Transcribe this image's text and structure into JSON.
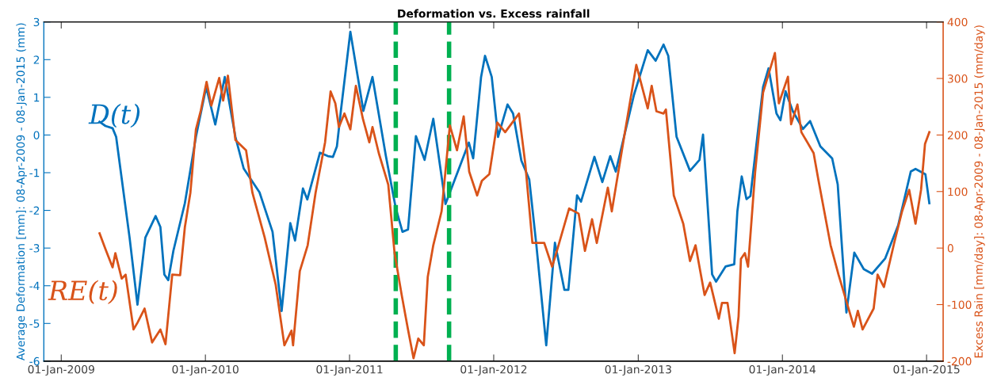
{
  "chart_data": {
    "type": "line",
    "title": "Deformation vs. Excess rainfall",
    "ylabel": "Average Deformation [mm]: 08-Apr-2009 - 08-Jan-2015 (mm)",
    "y2label": "Excess Rain [mm/day]: 08-Apr-2009 - 08-Jan-2015 (mm/day)",
    "xlim": [
      "2008-11-18",
      "2015-02-12"
    ],
    "xticks": [
      {
        "value": "2009-01-01",
        "label": "01-Jan-2009"
      },
      {
        "value": "2010-01-01",
        "label": "01-Jan-2010"
      },
      {
        "value": "2011-01-01",
        "label": "01-Jan-2011"
      },
      {
        "value": "2012-01-01",
        "label": "01-Jan-2012"
      },
      {
        "value": "2013-01-01",
        "label": "01-Jan-2013"
      },
      {
        "value": "2014-01-01",
        "label": "01-Jan-2014"
      },
      {
        "value": "2015-01-01",
        "label": "01-Jan-2015"
      }
    ],
    "ylim": [
      -6,
      3
    ],
    "yticks": [
      -6,
      -5,
      -4,
      -3,
      -2,
      -1,
      0,
      1,
      2,
      3
    ],
    "y2lim": [
      -200,
      400
    ],
    "y2ticks": [
      -200,
      -100,
      0,
      100,
      200,
      300,
      400
    ],
    "grid": false,
    "legend": false,
    "marker": "none",
    "line_style": "solid",
    "series": [
      {
        "name": "D(t)",
        "color": "#0072bd",
        "x": [
          "2009-04-08",
          "2009-04-23",
          "2009-05-11",
          "2009-05-20",
          "2009-06-23",
          "2009-07-13",
          "2009-08-02",
          "2009-08-28",
          "2009-09-09",
          "2009-09-19",
          "2009-09-29",
          "2009-10-12",
          "2009-11-10",
          "2009-12-08",
          "2010-01-03",
          "2010-01-26",
          "2010-02-19",
          "2010-03-18",
          "2010-04-08",
          "2010-05-18",
          "2010-06-20",
          "2010-07-13",
          "2010-08-04",
          "2010-08-16",
          "2010-09-05",
          "2010-09-16",
          "2010-10-18",
          "2010-11-07",
          "2010-11-20",
          "2010-11-30",
          "2010-12-10",
          "2011-01-03",
          "2011-02-05",
          "2011-02-28",
          "2011-04-03",
          "2011-04-28",
          "2011-05-15",
          "2011-05-29",
          "2011-06-18",
          "2011-07-10",
          "2011-08-01",
          "2011-09-01",
          "2011-10-30",
          "2011-11-10",
          "2011-11-30",
          "2011-12-10",
          "2011-12-27",
          "2012-01-12",
          "2012-02-05",
          "2012-02-19",
          "2012-03-11",
          "2012-03-31",
          "2012-04-18",
          "2012-05-13",
          "2012-06-04",
          "2012-06-28",
          "2012-07-08",
          "2012-07-30",
          "2012-08-09",
          "2012-09-12",
          "2012-10-02",
          "2012-10-22",
          "2012-11-05",
          "2012-12-21",
          "2013-01-25",
          "2013-02-14",
          "2013-03-06",
          "2013-03-18",
          "2013-04-08",
          "2013-05-12",
          "2013-06-05",
          "2013-06-14",
          "2013-07-07",
          "2013-07-17",
          "2013-08-10",
          "2013-09-01",
          "2013-09-09",
          "2013-09-20",
          "2013-10-02",
          "2013-10-12",
          "2013-11-13",
          "2013-11-27",
          "2013-12-17",
          "2013-12-27",
          "2014-01-09",
          "2014-01-27",
          "2014-02-22",
          "2014-03-12",
          "2014-04-07",
          "2014-05-07",
          "2014-05-21",
          "2014-06-12",
          "2014-07-02",
          "2014-07-26",
          "2014-08-16",
          "2014-09-18",
          "2014-10-21",
          "2014-11-22",
          "2014-12-04",
          "2014-12-29",
          "2015-01-08"
        ],
        "values": [
          0.35,
          0.24,
          0.18,
          -0.05,
          -2.72,
          -4.5,
          -2.72,
          -2.15,
          -2.44,
          -3.7,
          -3.85,
          -3.07,
          -1.81,
          -0.05,
          1.27,
          0.28,
          1.54,
          -0.05,
          -0.89,
          -1.52,
          -2.57,
          -4.67,
          -2.34,
          -2.8,
          -1.42,
          -1.71,
          -0.47,
          -0.56,
          -0.58,
          -0.3,
          0.64,
          2.74,
          0.64,
          1.54,
          -0.56,
          -1.94,
          -2.57,
          -2.51,
          -0.03,
          -0.66,
          0.43,
          -1.83,
          -0.2,
          -0.62,
          1.54,
          2.1,
          1.54,
          -0.05,
          0.81,
          0.57,
          -0.68,
          -1.18,
          -2.92,
          -5.58,
          -2.86,
          -4.11,
          -4.11,
          -1.6,
          -1.77,
          -0.58,
          -1.25,
          -0.56,
          -0.97,
          1.06,
          2.25,
          1.97,
          2.4,
          2.1,
          -0.05,
          -0.95,
          -0.66,
          0.01,
          -3.7,
          -3.89,
          -3.49,
          -3.43,
          -2.02,
          -1.1,
          -1.7,
          -1.62,
          1.27,
          1.77,
          0.57,
          0.39,
          1.16,
          0.64,
          0.16,
          0.37,
          -0.3,
          -0.62,
          -1.31,
          -4.71,
          -3.12,
          -3.56,
          -3.68,
          -3.28,
          -2.4,
          -0.97,
          -0.9,
          -1.04,
          -1.81
        ]
      },
      {
        "name": "RE(t)",
        "color": "#d95319",
        "axis": "y2",
        "x": [
          "2009-04-08",
          "2009-04-23",
          "2009-05-11",
          "2009-05-18",
          "2009-06-03",
          "2009-06-13",
          "2009-07-03",
          "2009-07-13",
          "2009-07-31",
          "2009-08-19",
          "2009-09-09",
          "2009-09-22",
          "2009-10-09",
          "2009-10-29",
          "2009-11-10",
          "2009-11-24",
          "2009-12-08",
          "2009-12-20",
          "2010-01-04",
          "2010-01-16",
          "2010-02-05",
          "2010-02-15",
          "2010-02-27",
          "2010-03-18",
          "2010-04-14",
          "2010-04-30",
          "2010-05-31",
          "2010-06-28",
          "2010-07-20",
          "2010-08-07",
          "2010-08-11",
          "2010-08-28",
          "2010-09-17",
          "2010-10-07",
          "2010-10-31",
          "2010-11-14",
          "2010-11-26",
          "2010-12-05",
          "2010-12-19",
          "2011-01-03",
          "2011-01-17",
          "2011-02-04",
          "2011-02-20",
          "2011-02-28",
          "2011-03-16",
          "2011-04-09",
          "2011-04-25",
          "2011-05-13",
          "2011-05-29",
          "2011-06-12",
          "2011-06-24",
          "2011-07-08",
          "2011-07-18",
          "2011-08-01",
          "2011-08-22",
          "2011-09-12",
          "2011-09-30",
          "2011-10-17",
          "2011-10-31",
          "2011-11-20",
          "2011-12-02",
          "2011-12-21",
          "2012-01-10",
          "2012-01-30",
          "2012-03-05",
          "2012-03-21",
          "2012-04-08",
          "2012-05-08",
          "2012-05-28",
          "2012-06-09",
          "2012-07-10",
          "2012-08-03",
          "2012-08-19",
          "2012-09-06",
          "2012-09-18",
          "2012-10-16",
          "2012-10-26",
          "2012-11-27",
          "2012-12-27",
          "2013-01-25",
          "2013-02-04",
          "2013-02-16",
          "2013-03-06",
          "2013-03-12",
          "2013-04-01",
          "2013-04-25",
          "2013-05-12",
          "2013-05-26",
          "2013-06-18",
          "2013-07-02",
          "2013-07-24",
          "2013-08-01",
          "2013-08-15",
          "2013-09-02",
          "2013-09-12",
          "2013-09-18",
          "2013-09-28",
          "2013-10-06",
          "2013-10-24",
          "2013-11-13",
          "2013-12-13",
          "2013-12-23",
          "2014-01-15",
          "2014-01-23",
          "2014-02-08",
          "2014-02-18",
          "2014-03-21",
          "2014-04-02",
          "2014-05-03",
          "2014-05-23",
          "2014-07-01",
          "2014-07-11",
          "2014-07-23",
          "2014-08-20",
          "2014-08-30",
          "2014-09-15",
          "2014-10-11",
          "2014-10-31",
          "2014-11-18",
          "2014-12-04",
          "2014-12-18",
          "2014-12-28",
          "2015-01-08"
        ],
        "values": [
          26,
          -2,
          -34,
          -9,
          -54,
          -47,
          -144,
          -132,
          -107,
          -167,
          -144,
          -170,
          -47,
          -48,
          37,
          98,
          210,
          242,
          294,
          252,
          301,
          261,
          305,
          191,
          173,
          98,
          19,
          -65,
          -172,
          -146,
          -172,
          -41,
          5,
          98,
          187,
          277,
          256,
          214,
          238,
          210,
          287,
          228,
          187,
          214,
          168,
          112,
          -9,
          -83,
          -144,
          -195,
          -160,
          -172,
          -51,
          5,
          65,
          217,
          173,
          233,
          135,
          93,
          119,
          131,
          222,
          205,
          238,
          149,
          9,
          9,
          -33,
          -5,
          70,
          61,
          -5,
          51,
          9,
          107,
          65,
          200,
          324,
          247,
          287,
          242,
          238,
          245,
          93,
          43,
          -23,
          5,
          -83,
          -61,
          -125,
          -97,
          -97,
          -186,
          -121,
          -19,
          -9,
          -33,
          135,
          275,
          345,
          256,
          303,
          219,
          254,
          205,
          168,
          121,
          5,
          -47,
          -139,
          -111,
          -144,
          -107,
          -47,
          -69,
          9,
          65,
          103,
          43,
          103,
          184,
          205
        ]
      }
    ],
    "ref_lines": [
      {
        "axis": "x",
        "value": "2011-04-28",
        "color": "#00b050",
        "line_style": "dashed"
      },
      {
        "axis": "x",
        "value": "2011-09-10",
        "color": "#00b050",
        "line_style": "dashed"
      }
    ]
  }
}
